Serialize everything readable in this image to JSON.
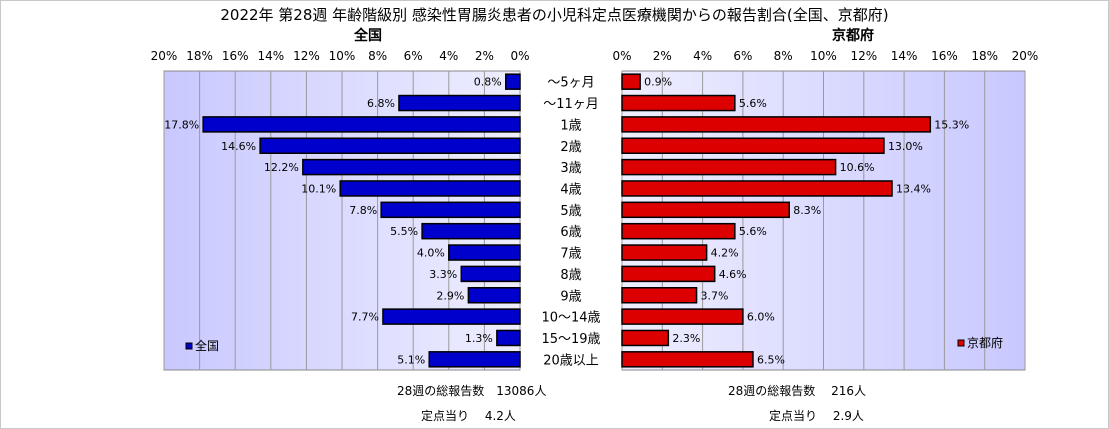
{
  "chart_data": {
    "type": "bar",
    "title": "2022年 第28週  年齢階級別 感染性胃腸炎患者の小児科定点医療機関からの報告割合(全国、京都府)",
    "categories": [
      "～5ヶ月",
      "～11ヶ月",
      "1歳",
      "2歳",
      "3歳",
      "4歳",
      "5歳",
      "6歳",
      "7歳",
      "8歳",
      "9歳",
      "10～14歳",
      "15～19歳",
      "20歳以上"
    ],
    "axis_ticks": [
      "0%",
      "2%",
      "4%",
      "6%",
      "8%",
      "10%",
      "12%",
      "14%",
      "16%",
      "18%",
      "20%"
    ],
    "xlim": [
      0,
      20
    ],
    "grid": true,
    "series": [
      {
        "name": "全国",
        "panel_title": "全国",
        "color": "#0000cc",
        "values": [
          0.8,
          6.8,
          17.8,
          14.6,
          12.2,
          10.1,
          7.8,
          5.5,
          4.0,
          3.3,
          2.9,
          7.7,
          1.3,
          5.1
        ],
        "value_labels": [
          "0.8%",
          "6.8%",
          "17.8%",
          "14.6%",
          "12.2%",
          "10.1%",
          "7.8%",
          "5.5%",
          "4.0%",
          "3.3%",
          "2.9%",
          "7.7%",
          "1.3%",
          "5.1%"
        ],
        "legend_position": "bottom-left"
      },
      {
        "name": "京都府",
        "panel_title": "京都府",
        "color": "#dd0000",
        "values": [
          0.9,
          5.6,
          15.3,
          13.0,
          10.6,
          13.4,
          8.3,
          5.6,
          4.2,
          4.6,
          3.7,
          6.0,
          2.3,
          6.5
        ],
        "value_labels": [
          "0.9%",
          "5.6%",
          "15.3%",
          "13.0%",
          "10.6%",
          "13.4%",
          "8.3%",
          "5.6%",
          "4.2%",
          "4.6%",
          "3.7%",
          "6.0%",
          "2.3%",
          "6.5%"
        ],
        "legend_position": "bottom-right"
      }
    ],
    "plot_background": "#c8c8ff"
  },
  "footer": {
    "national_reports": "28週の総報告数　13086人",
    "national_per_site": "定点当り　 4.2人",
    "kyoto_reports": "28週の総報告数　 216人",
    "kyoto_per_site": "定点当り　 2.9人"
  }
}
